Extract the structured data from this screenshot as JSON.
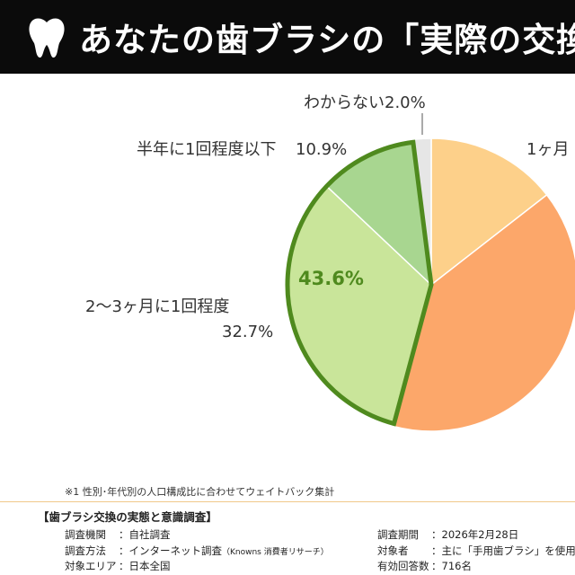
{
  "title": "あなたの歯ブラシの「実際の交換",
  "chart_data": {
    "type": "pie",
    "slices": [
      {
        "label": "1ヶ月",
        "value_label": "",
        "value": 14.4,
        "color": "#fdd08a"
      },
      {
        "label": "",
        "value_label": "",
        "value": 39.5,
        "color": "#fca76a"
      },
      {
        "label": "2〜3ヶ月に1回程度",
        "value_label": "32.7%",
        "value": 32.7,
        "color": "#c9e59a"
      },
      {
        "label": "半年に1回程度以下",
        "value_label": "10.9%",
        "value": 10.9,
        "color": "#a8d690"
      },
      {
        "label": "わからない",
        "value_label": "2.0%",
        "value": 2.0,
        "color": "#e6e6e6"
      }
    ],
    "highlight": {
      "value_label": "43.6%",
      "color": "#4f8a1e"
    }
  },
  "footnote": "※1 性別･年代別の人口構成比に合わせてウェイトバック集計",
  "survey": {
    "title": "【歯ブラシ交換の実態と意識調査】",
    "rows_left": [
      {
        "key": "調査機関",
        "value": "：自社調査"
      },
      {
        "key": "調査方法",
        "value": "：インターネット調査",
        "note": "（Knowns 消費者リサーチ）"
      },
      {
        "key": "対象エリア",
        "value": "：日本全国"
      }
    ],
    "rows_right": [
      {
        "key": "調査期間",
        "value": "：2026年2月28日"
      },
      {
        "key": "対象者",
        "value": "：主に「手用歯ブラシ」を使用す"
      },
      {
        "key": "有効回答数",
        "value": "：716名"
      }
    ]
  }
}
